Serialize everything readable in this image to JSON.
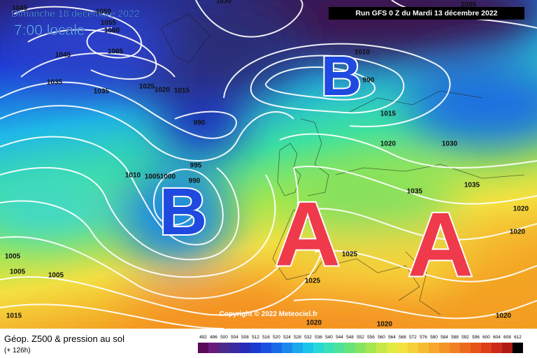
{
  "header": {
    "date": "Dimanche 18 décembre 2022",
    "time": "7:00 locale",
    "run": "Run GFS 0 Z du Mardi 13 décembre 2022"
  },
  "copyright": "Copyright © 2022 Meteociel.fr",
  "footer": {
    "title": "Géop. Z500 & pression au sol",
    "lead": "(+ 126h)"
  },
  "pressure_centers": [
    "B",
    "B",
    "A",
    "A"
  ],
  "isobar_labels": [
    1045,
    1050,
    1055,
    1060,
    1065,
    1045,
    1035,
    1035,
    1025,
    1020,
    1015,
    990,
    995,
    990,
    1010,
    1005,
    1000,
    1010,
    990,
    1015,
    1020,
    1030,
    1035,
    1035,
    1020,
    1020,
    1025,
    1025,
    1020,
    1020,
    1020,
    1005,
    1005,
    1005,
    1015,
    1030,
    1005
  ],
  "colorbar": {
    "ticks": [
      492,
      496,
      500,
      504,
      508,
      512,
      516,
      520,
      524,
      528,
      532,
      536,
      540,
      544,
      548,
      552,
      556,
      560,
      564,
      568,
      572,
      576,
      580,
      584,
      588,
      592,
      596,
      600,
      604,
      608,
      612
    ],
    "colors": [
      "#5a0a5a",
      "#6a1a7a",
      "#4a2a8a",
      "#3a2aa0",
      "#2a2ab8",
      "#1a3ad0",
      "#1a50e0",
      "#1a6ae8",
      "#1a88ec",
      "#1aa8ee",
      "#1ac4ea",
      "#28d8d8",
      "#3ae0b8",
      "#4ee498",
      "#66e47a",
      "#86e460",
      "#a6e650",
      "#c6e848",
      "#e2ea44",
      "#f4e240",
      "#f6d03a",
      "#f6bc34",
      "#f6a82e",
      "#f49428",
      "#f08022",
      "#ec6a1e",
      "#e6541a",
      "#de3e18",
      "#cc2a16",
      "#b01a14",
      "#000000"
    ]
  }
}
